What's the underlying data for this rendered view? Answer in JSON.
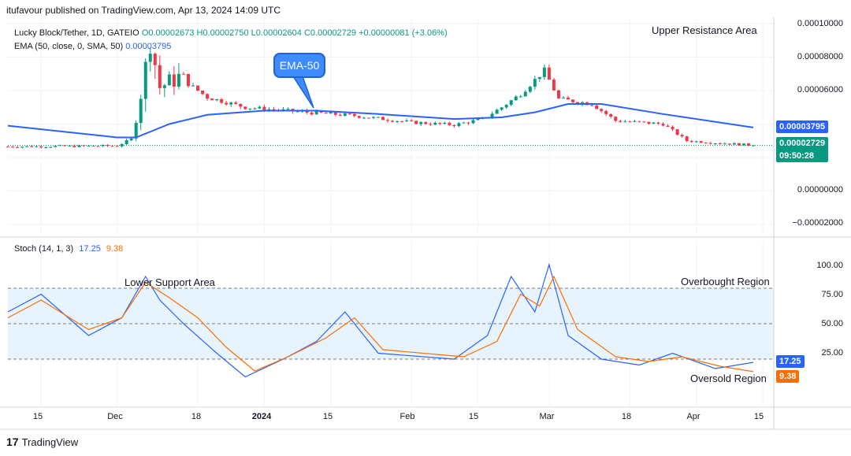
{
  "attribution": "itufavour published on TradingView.com, Apr 13, 2024 14:09 UTC",
  "legend": {
    "symbol_line": "Lucky Block/Tether, 1D, GATEIO",
    "o": "O0.00002673",
    "h": "H0.00002750",
    "l": "L0.00002604",
    "c": "C0.00002729",
    "change": "+0.00000081 (+3.06%)",
    "ema_line": "EMA (50, close, 0, SMA, 50)",
    "ema_value": "0.00003795"
  },
  "callout": "EMA-50",
  "annotations": {
    "upper_resistance": "Upper Resistance Area",
    "lower_support": "Lower Support Area",
    "overbought": "Overbought Region",
    "oversold": "Oversold Region"
  },
  "price_axis": [
    "0.00010000",
    "0.00008000",
    "0.00006000",
    "0.00000000",
    "−0.00002000"
  ],
  "price_badges": {
    "ema": "0.00003795",
    "last": "0.00002729",
    "countdown": "09:50:28"
  },
  "stoch": {
    "label": "Stoch (14, 1, 3)",
    "k_value": "17.25",
    "d_value": "9.38",
    "axis": [
      "100.00",
      "75.00",
      "50.00",
      "25.00"
    ]
  },
  "time_axis": [
    "15",
    "Dec",
    "18",
    "2024",
    "15",
    "Feb",
    "15",
    "Mar",
    "18",
    "Apr",
    "15"
  ],
  "colors": {
    "up": "#089981",
    "down": "#f23645",
    "ema": "#2962ff",
    "k": "#2962ff",
    "d": "#ff6d00",
    "band": "#e3f2fd"
  },
  "chart_data": [
    {
      "type": "candlestick",
      "title": "Lucky Block/Tether, 1D, GATEIO",
      "x_range": [
        "2023-11-08",
        "2024-04-13"
      ],
      "ylim": [
        -2e-05,
        0.0001
      ],
      "anchors": [
        {
          "date": "2023-11-08",
          "close": 2.65e-05
        },
        {
          "date": "2023-12-01",
          "close": 2.7e-05
        },
        {
          "date": "2023-12-04",
          "close": 3.1e-05
        },
        {
          "date": "2023-12-06",
          "close": 5.8e-05
        },
        {
          "date": "2023-12-08",
          "close": 9e-05
        },
        {
          "date": "2023-12-10",
          "close": 6.2e-05
        },
        {
          "date": "2023-12-14",
          "close": 6.8e-05
        },
        {
          "date": "2023-12-20",
          "close": 5.6e-05
        },
        {
          "date": "2023-12-28",
          "close": 5e-05
        },
        {
          "date": "2024-01-10",
          "close": 4.7e-05
        },
        {
          "date": "2024-01-20",
          "close": 4.5e-05
        },
        {
          "date": "2024-02-01",
          "close": 4.1e-05
        },
        {
          "date": "2024-02-10",
          "close": 3.95e-05
        },
        {
          "date": "2024-02-16",
          "close": 4.3e-05
        },
        {
          "date": "2024-02-20",
          "close": 5e-05
        },
        {
          "date": "2024-02-24",
          "close": 5.8e-05
        },
        {
          "date": "2024-02-29",
          "close": 7.2e-05
        },
        {
          "date": "2024-03-03",
          "close": 5.5e-05
        },
        {
          "date": "2024-03-10",
          "close": 5.2e-05
        },
        {
          "date": "2024-03-15",
          "close": 4.2e-05
        },
        {
          "date": "2024-03-25",
          "close": 4e-05
        },
        {
          "date": "2024-03-30",
          "close": 3e-05
        },
        {
          "date": "2024-04-13",
          "close": 2.729e-05
        }
      ],
      "last_close": 2.729e-05
    },
    {
      "type": "line",
      "name": "EMA (50, close, 0, SMA, 50)",
      "x": [
        "2023-11-08",
        "2023-12-01",
        "2023-12-05",
        "2023-12-12",
        "2023-12-20",
        "2024-01-01",
        "2024-01-12",
        "2024-01-25",
        "2024-02-10",
        "2024-02-20",
        "2024-02-27",
        "2024-03-05",
        "2024-03-12",
        "2024-03-25",
        "2024-04-13"
      ],
      "y": [
        3.9e-05,
        3.2e-05,
        3.2e-05,
        4e-05,
        4.55e-05,
        4.8e-05,
        4.8e-05,
        4.6e-05,
        4.3e-05,
        4.4e-05,
        4.7e-05,
        5.2e-05,
        5.2e-05,
        4.6e-05,
        3.795e-05
      ]
    },
    {
      "type": "line",
      "title": "Stoch (14, 1, 3)",
      "ylim": [
        0,
        100
      ],
      "series": [
        {
          "name": "K",
          "x": [
            "2023-11-08",
            "2023-11-15",
            "2023-11-25",
            "2023-12-02",
            "2023-12-07",
            "2023-12-10",
            "2023-12-15",
            "2023-12-22",
            "2023-12-28",
            "2024-01-05",
            "2024-01-12",
            "2024-01-18",
            "2024-01-25",
            "2024-02-10",
            "2024-02-17",
            "2024-02-22",
            "2024-02-27",
            "2024-03-01",
            "2024-03-05",
            "2024-03-12",
            "2024-03-20",
            "2024-03-27",
            "2024-04-05",
            "2024-04-13"
          ],
          "y": [
            60,
            75,
            40,
            55,
            90,
            70,
            50,
            25,
            5,
            20,
            35,
            60,
            25,
            20,
            40,
            90,
            60,
            100,
            40,
            20,
            15,
            25,
            12,
            17.25
          ]
        },
        {
          "name": "D",
          "x": [
            "2023-11-08",
            "2023-11-15",
            "2023-11-25",
            "2023-12-02",
            "2023-12-07",
            "2023-12-12",
            "2023-12-18",
            "2023-12-24",
            "2023-12-30",
            "2024-01-06",
            "2024-01-14",
            "2024-01-20",
            "2024-01-26",
            "2024-02-12",
            "2024-02-19",
            "2024-02-24",
            "2024-02-28",
            "2024-03-02",
            "2024-03-07",
            "2024-03-15",
            "2024-03-22",
            "2024-03-29",
            "2024-04-06",
            "2024-04-13"
          ],
          "y": [
            55,
            70,
            45,
            55,
            85,
            72,
            55,
            30,
            10,
            22,
            38,
            55,
            28,
            22,
            35,
            75,
            65,
            90,
            45,
            22,
            18,
            22,
            14,
            9.38
          ]
        }
      ],
      "levels": [
        80,
        50,
        20
      ]
    }
  ]
}
